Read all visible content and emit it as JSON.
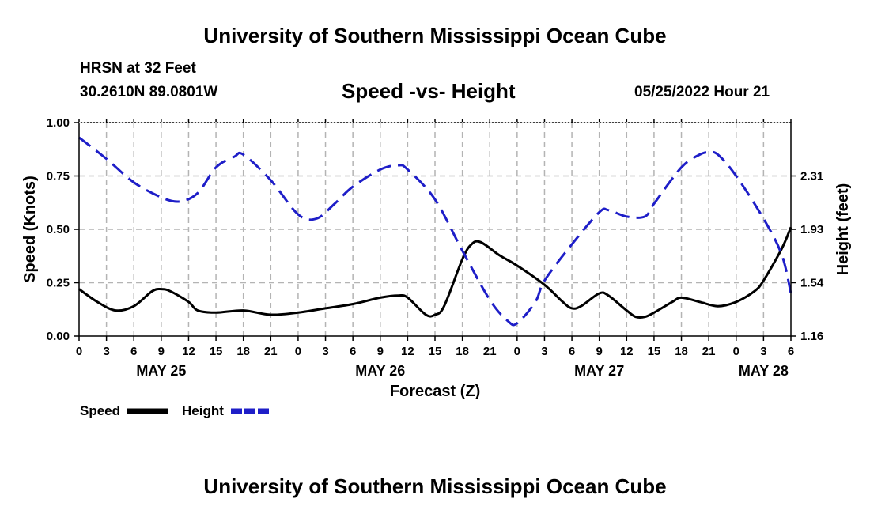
{
  "page": {
    "title_top": "University of Southern Mississippi Ocean Cube",
    "title_bottom": "University of Southern Mississippi Ocean Cube",
    "station": "HRSN at 32 Feet",
    "coords": "30.2610N  89.0801W",
    "datetime": "05/25/2022 Hour 21"
  },
  "chart_data": {
    "type": "line",
    "title": "Speed -vs- Height",
    "xlabel": "Forecast (Z)",
    "ylabel": "Speed (Knots)",
    "ylabel_right": "Height (feet)",
    "x_hours": [
      0,
      3,
      6,
      9,
      12,
      15,
      18,
      21,
      24,
      27,
      30,
      33,
      36,
      39,
      42,
      45,
      48,
      51,
      54,
      57,
      60,
      63,
      66,
      69,
      72,
      75,
      78
    ],
    "x_tick_labels": [
      "0",
      "3",
      "6",
      "9",
      "12",
      "15",
      "18",
      "21",
      "0",
      "3",
      "6",
      "9",
      "12",
      "15",
      "18",
      "21",
      "0",
      "3",
      "6",
      "9",
      "12",
      "15",
      "18",
      "21",
      "0",
      "3",
      "6"
    ],
    "date_labels": [
      {
        "label": "MAY 25",
        "hour": 9
      },
      {
        "label": "MAY 26",
        "hour": 33
      },
      {
        "label": "MAY 27",
        "hour": 57
      },
      {
        "label": "MAY 28",
        "hour": 75
      }
    ],
    "ylim": [
      0,
      1.0
    ],
    "y_ticks": [
      0.0,
      0.25,
      0.5,
      0.75,
      1.0
    ],
    "y_tick_labels": [
      "0.00",
      "0.25",
      "0.50",
      "0.75",
      "1.00"
    ],
    "y2_tick_labels": [
      "1.16",
      "1.54",
      "1.93",
      "2.31"
    ],
    "y2_tick_positions": [
      0.0,
      0.25,
      0.5,
      0.75
    ],
    "series": [
      {
        "name": "Speed",
        "color": "#000000",
        "dash": "solid",
        "points": [
          [
            0,
            0.22
          ],
          [
            2,
            0.16
          ],
          [
            4,
            0.12
          ],
          [
            6,
            0.14
          ],
          [
            8,
            0.21
          ],
          [
            9,
            0.22
          ],
          [
            10,
            0.21
          ],
          [
            12,
            0.16
          ],
          [
            13,
            0.12
          ],
          [
            15,
            0.11
          ],
          [
            18,
            0.12
          ],
          [
            21,
            0.1
          ],
          [
            24,
            0.11
          ],
          [
            27,
            0.13
          ],
          [
            30,
            0.15
          ],
          [
            33,
            0.18
          ],
          [
            35,
            0.19
          ],
          [
            36,
            0.18
          ],
          [
            38,
            0.1
          ],
          [
            39,
            0.1
          ],
          [
            40,
            0.14
          ],
          [
            42,
            0.36
          ],
          [
            43,
            0.43
          ],
          [
            44,
            0.44
          ],
          [
            46,
            0.38
          ],
          [
            48,
            0.33
          ],
          [
            51,
            0.24
          ],
          [
            53,
            0.16
          ],
          [
            54,
            0.13
          ],
          [
            55,
            0.14
          ],
          [
            57,
            0.2
          ],
          [
            58,
            0.19
          ],
          [
            60,
            0.12
          ],
          [
            61,
            0.09
          ],
          [
            62,
            0.09
          ],
          [
            63,
            0.11
          ],
          [
            65,
            0.16
          ],
          [
            66,
            0.18
          ],
          [
            68,
            0.16
          ],
          [
            70,
            0.14
          ],
          [
            72,
            0.16
          ],
          [
            74,
            0.21
          ],
          [
            75,
            0.26
          ],
          [
            77,
            0.41
          ],
          [
            78,
            0.51
          ]
        ]
      },
      {
        "name": "Height",
        "color": "#1e1ec8",
        "dash": "dashed",
        "points": [
          [
            0,
            0.93
          ],
          [
            3,
            0.83
          ],
          [
            6,
            0.72
          ],
          [
            9,
            0.65
          ],
          [
            11,
            0.63
          ],
          [
            13,
            0.67
          ],
          [
            15,
            0.79
          ],
          [
            17,
            0.84
          ],
          [
            18,
            0.85
          ],
          [
            21,
            0.73
          ],
          [
            24,
            0.57
          ],
          [
            26,
            0.55
          ],
          [
            28,
            0.62
          ],
          [
            30,
            0.7
          ],
          [
            33,
            0.78
          ],
          [
            35,
            0.8
          ],
          [
            36,
            0.78
          ],
          [
            39,
            0.64
          ],
          [
            42,
            0.4
          ],
          [
            45,
            0.17
          ],
          [
            47,
            0.07
          ],
          [
            48,
            0.06
          ],
          [
            50,
            0.16
          ],
          [
            51,
            0.26
          ],
          [
            54,
            0.43
          ],
          [
            57,
            0.58
          ],
          [
            58,
            0.59
          ],
          [
            60,
            0.56
          ],
          [
            62,
            0.56
          ],
          [
            63,
            0.62
          ],
          [
            66,
            0.79
          ],
          [
            68,
            0.85
          ],
          [
            69,
            0.86
          ],
          [
            70,
            0.85
          ],
          [
            72,
            0.75
          ],
          [
            75,
            0.55
          ],
          [
            77,
            0.38
          ],
          [
            78,
            0.2
          ]
        ]
      }
    ],
    "legend": [
      {
        "label": "Speed",
        "color": "#000000",
        "dash": "solid"
      },
      {
        "label": "Height",
        "color": "#1e1ec8",
        "dash": "dashed"
      }
    ],
    "legend_position": "bottom-left",
    "grid": true
  }
}
